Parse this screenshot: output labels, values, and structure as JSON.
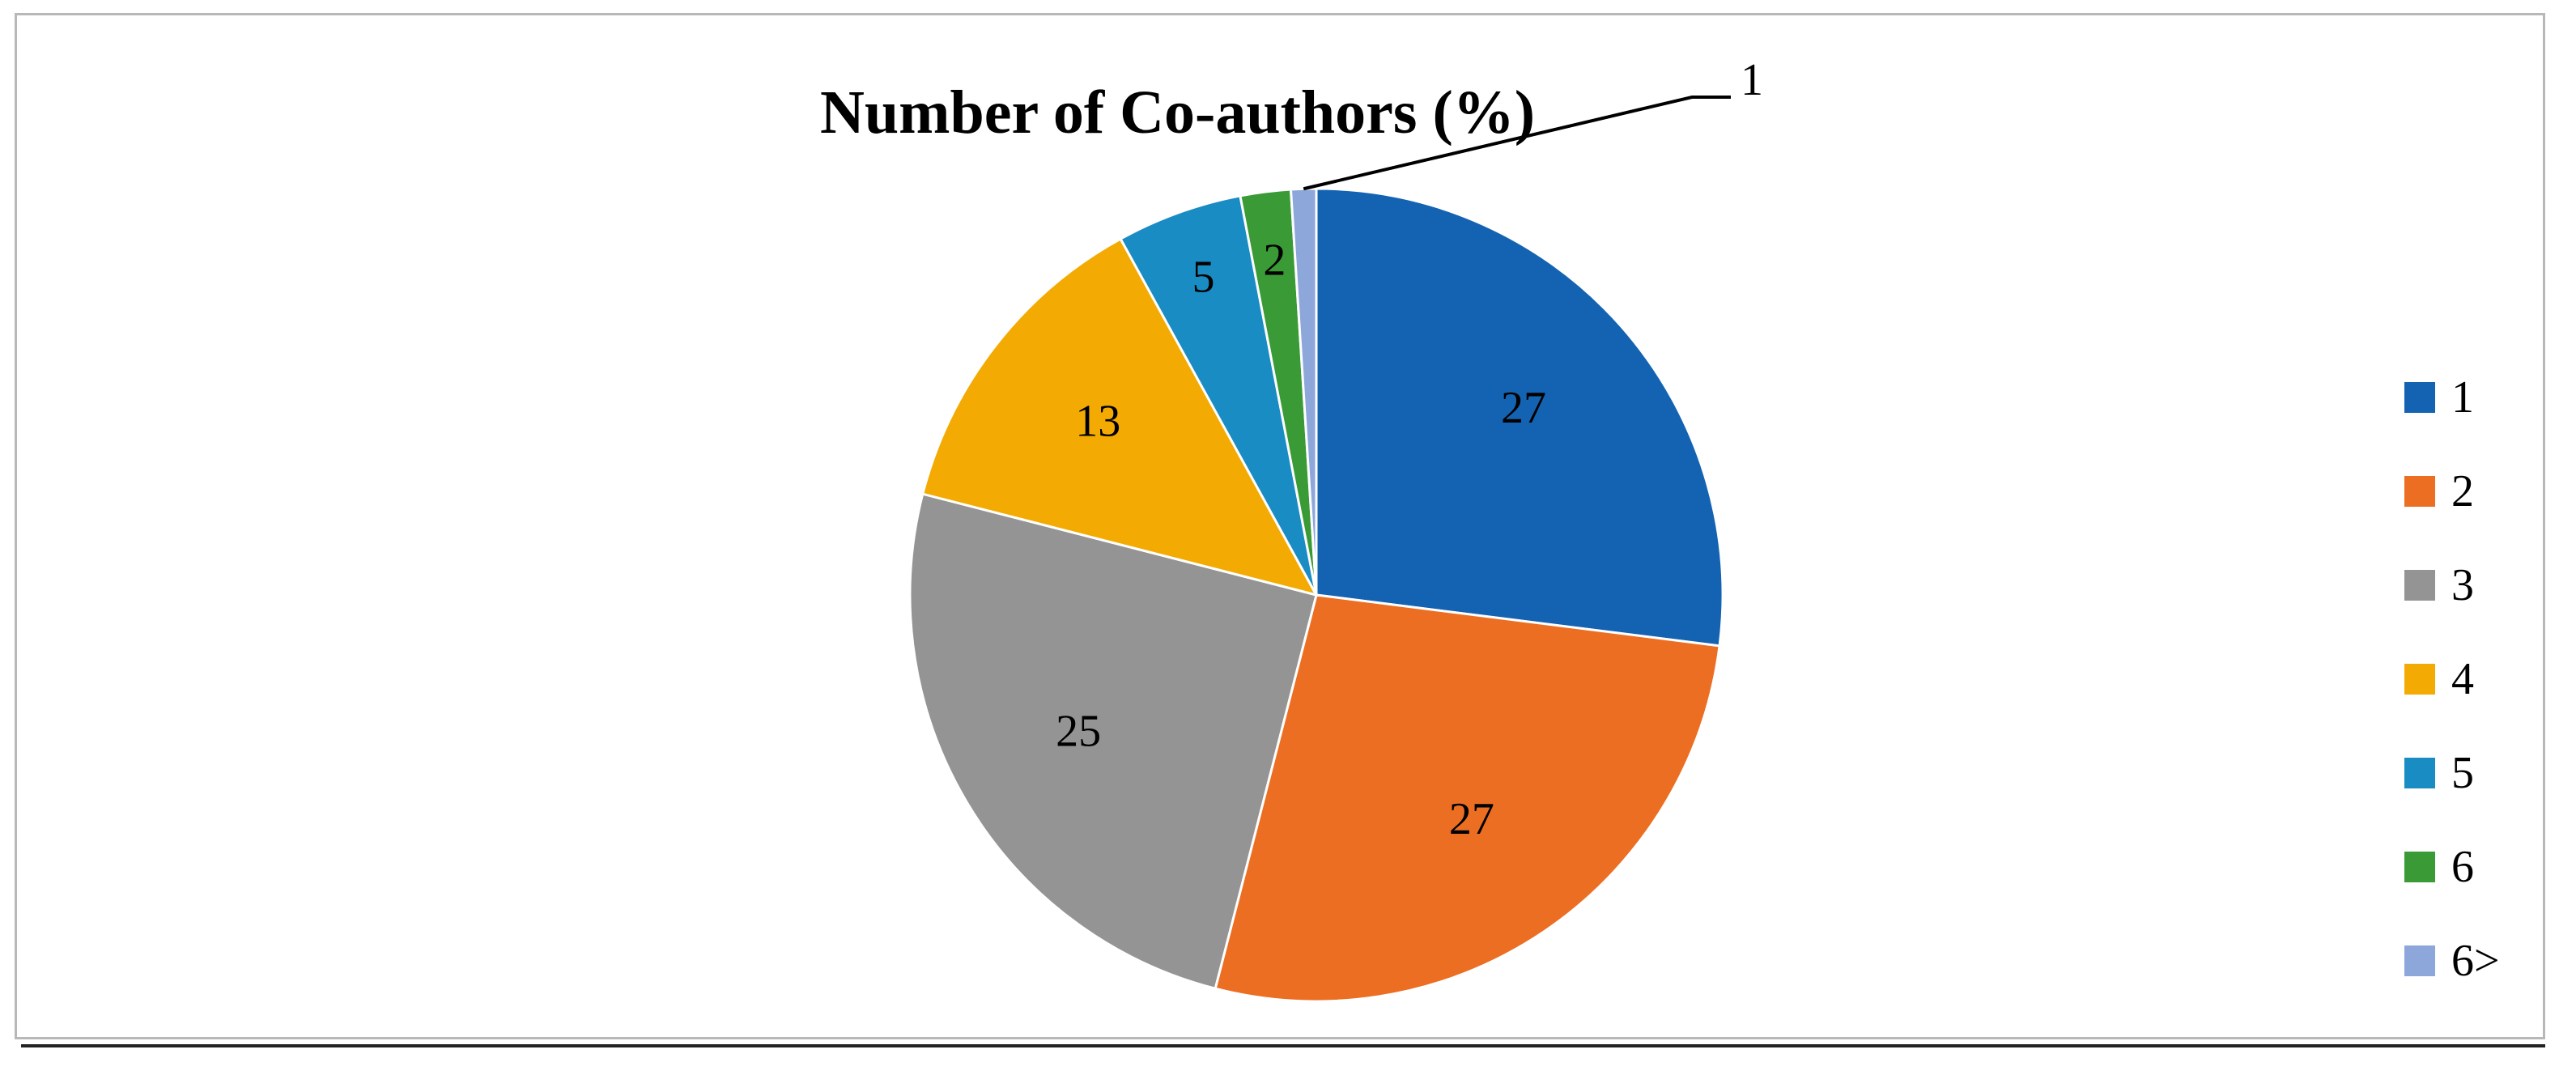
{
  "chart_data": {
    "type": "pie",
    "title": "Number of Co-authors (%)",
    "categories": [
      "1",
      "2",
      "3",
      "4",
      "5",
      "6",
      "6>"
    ],
    "values": [
      27,
      27,
      25,
      13,
      5,
      2,
      1
    ],
    "data_labels": [
      "27",
      "27",
      "25",
      "13",
      "5",
      "2",
      "1"
    ],
    "colors": [
      "#1463B3",
      "#EC6E22",
      "#949494",
      "#F3AB03",
      "#198CC3",
      "#3A9A35",
      "#8EA7DB"
    ],
    "start_angle": "12 o'clock, clockwise",
    "legend_position": "right"
  }
}
